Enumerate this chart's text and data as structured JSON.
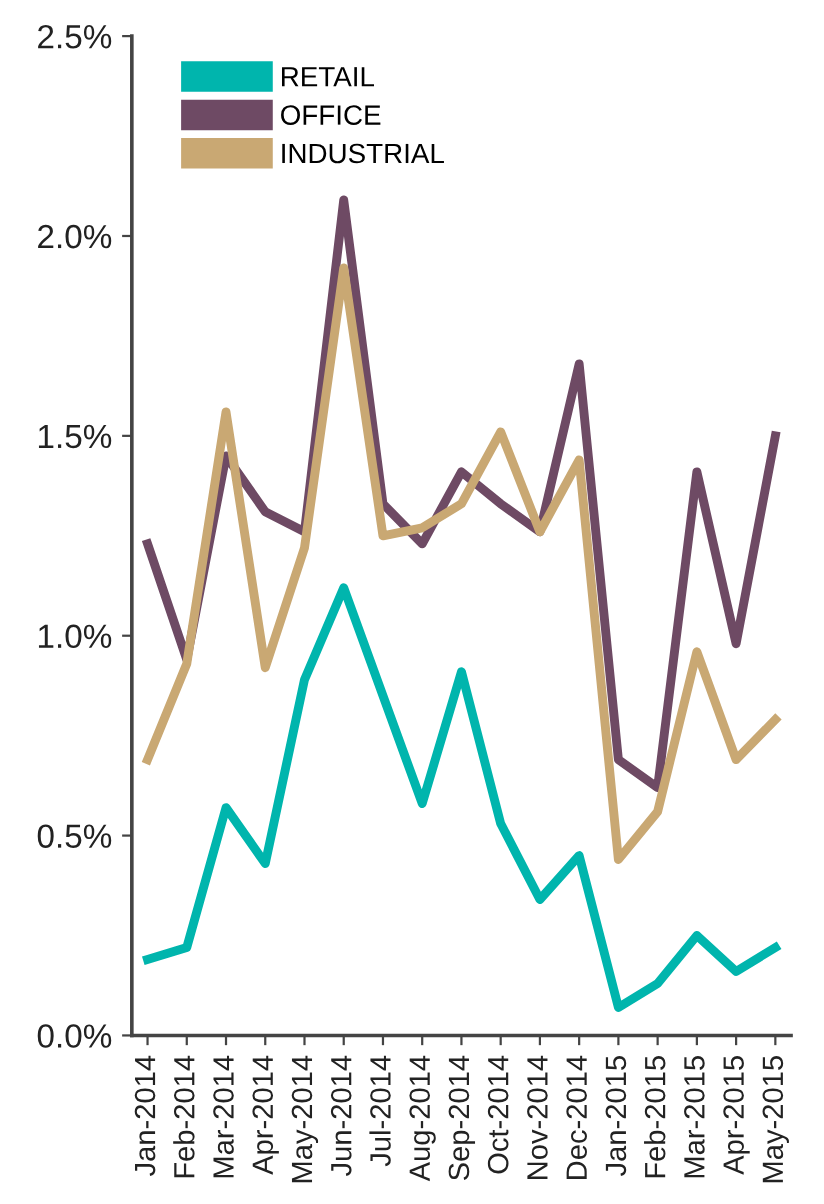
{
  "chart_data": {
    "type": "line",
    "categories": [
      "Jan-2014",
      "Feb-2014",
      "Mar-2014",
      "Apr-2014",
      "May-2014",
      "Jun-2014",
      "Jul-2014",
      "Aug-2014",
      "Sep-2014",
      "Oct-2014",
      "Nov-2014",
      "Dec-2014",
      "Jan-2015",
      "Feb-2015",
      "Mar-2015",
      "Apr-2015",
      "May-2015"
    ],
    "series": [
      {
        "name": "RETAIL",
        "color": "#00b5ad",
        "values": [
          0.19,
          0.22,
          0.57,
          0.43,
          0.89,
          1.12,
          0.85,
          0.58,
          0.91,
          0.53,
          0.34,
          0.45,
          0.07,
          0.13,
          0.25,
          0.16,
          0.22
        ]
      },
      {
        "name": "OFFICE",
        "color": "#6e4a64",
        "values": [
          1.23,
          0.94,
          1.45,
          1.31,
          1.26,
          2.09,
          1.33,
          1.23,
          1.41,
          1.33,
          1.26,
          1.68,
          0.69,
          0.62,
          1.41,
          0.98,
          1.5
        ]
      },
      {
        "name": "INDUSTRIAL",
        "color": "#c9a873",
        "values": [
          0.69,
          0.93,
          1.56,
          0.92,
          1.22,
          1.92,
          1.25,
          1.27,
          1.33,
          1.51,
          1.26,
          1.44,
          0.44,
          0.56,
          0.96,
          0.69,
          0.79
        ]
      }
    ],
    "ylim": [
      0,
      2.5
    ],
    "yticks": [
      {
        "value": 0,
        "label": "0.0%"
      },
      {
        "value": 0.5,
        "label": "0.5%"
      },
      {
        "value": 1.0,
        "label": "1.0%"
      },
      {
        "value": 1.5,
        "label": "1.5%"
      },
      {
        "value": 2.0,
        "label": "2.0%"
      },
      {
        "value": 2.5,
        "label": "2.5%"
      }
    ],
    "legend": "top left",
    "grid": false,
    "marker": "none",
    "line_style": "solid"
  }
}
